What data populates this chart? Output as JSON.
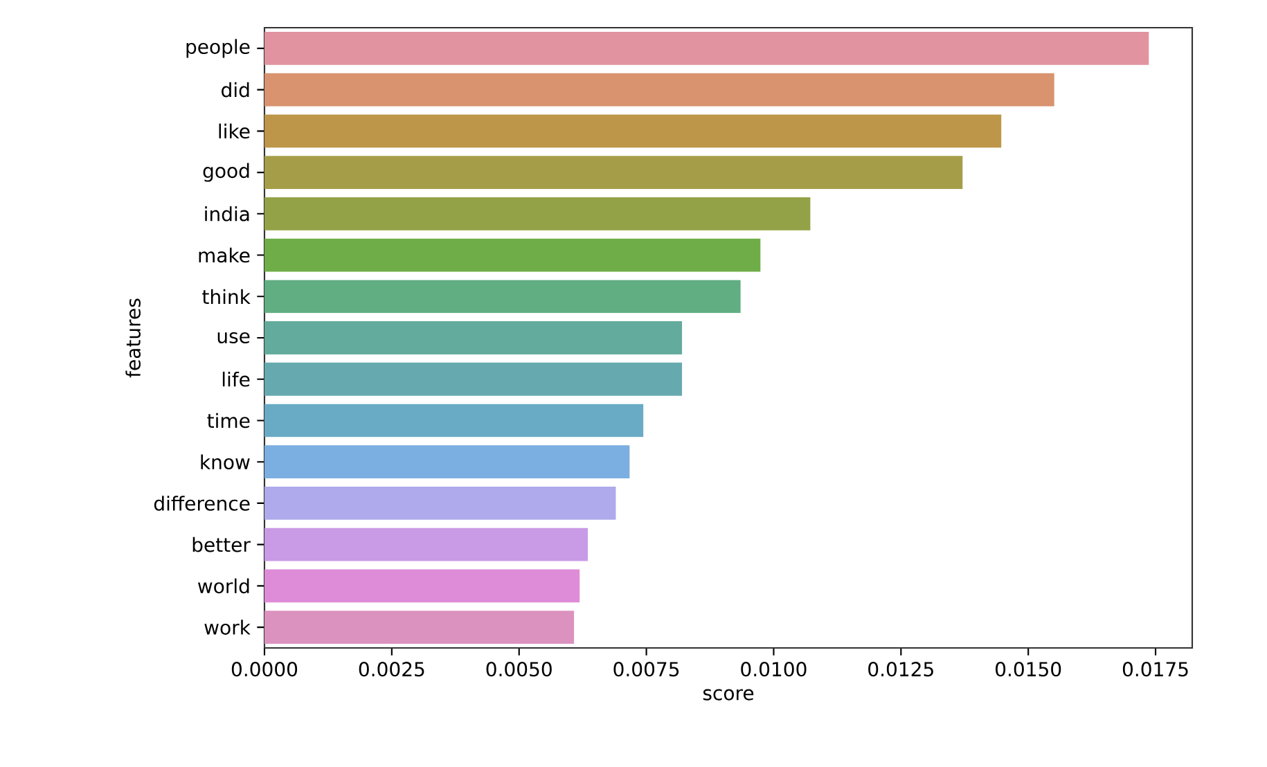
{
  "chart_data": {
    "type": "bar",
    "orientation": "horizontal",
    "xlabel": "score",
    "ylabel": "features",
    "categories": [
      "people",
      "did",
      "like",
      "good",
      "india",
      "make",
      "think",
      "use",
      "life",
      "time",
      "know",
      "difference",
      "better",
      "world",
      "work"
    ],
    "values": [
      0.01737,
      0.01551,
      0.01447,
      0.01371,
      0.01072,
      0.00974,
      0.00935,
      0.0082,
      0.0082,
      0.00744,
      0.00717,
      0.0069,
      0.00635,
      0.00619,
      0.00608
    ],
    "colors": [
      "#e1939f",
      "#d9936f",
      "#bd9649",
      "#a69d48",
      "#94a247",
      "#6fad48",
      "#60ae82",
      "#63ab9d",
      "#66aab0",
      "#69abc5",
      "#7baee1",
      "#aeaaeb",
      "#c99ae6",
      "#de8cd8",
      "#dc92be"
    ],
    "xlim": [
      0,
      0.01822
    ],
    "xticks": [
      {
        "value": 0,
        "label": "0.0000"
      },
      {
        "value": 0.0025,
        "label": "0.0025"
      },
      {
        "value": 0.005,
        "label": "0.0050"
      },
      {
        "value": 0.0075,
        "label": "0.0075"
      },
      {
        "value": 0.01,
        "label": "0.0100"
      },
      {
        "value": 0.0125,
        "label": "0.0125"
      },
      {
        "value": 0.015,
        "label": "0.0150"
      },
      {
        "value": 0.0175,
        "label": "0.0175"
      }
    ]
  }
}
